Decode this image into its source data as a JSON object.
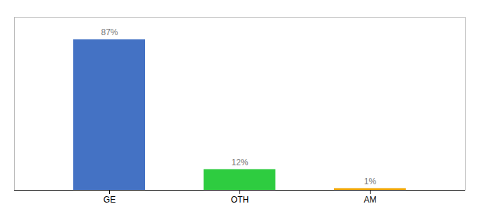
{
  "chart_data": {
    "type": "bar",
    "categories": [
      "GE",
      "OTH",
      "AM"
    ],
    "values": [
      87,
      12,
      1
    ],
    "value_labels": [
      "87%",
      "12%",
      "1%"
    ],
    "colors": [
      "#4472c4",
      "#2ecc40",
      "#f0a500"
    ],
    "ylim": [
      0,
      100
    ],
    "data_labels": true,
    "tick_labels": "x"
  }
}
